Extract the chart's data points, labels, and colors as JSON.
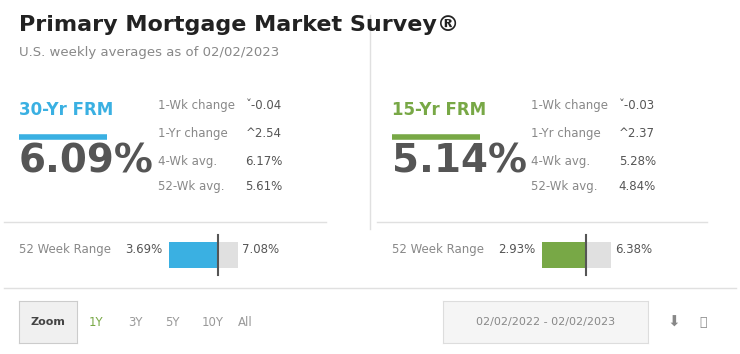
{
  "title": "Primary Mortgage Market Survey®",
  "subtitle": "U.S. weekly averages as of 02/02/2023",
  "background_color": "#ffffff",
  "left_panel": {
    "label": "30-Yr FRM",
    "label_color": "#3ab0e2",
    "line_color": "#3ab0e2",
    "rate": "6.09%",
    "rate_color": "#555555",
    "wk1_change_label": "1-Wk change",
    "wk1_change_value": "ˇ-0.04",
    "yr1_change_label": "1-Yr change",
    "yr1_change_value": "^2.54",
    "wk4_avg_label": "4-Wk avg.",
    "wk4_avg_value": "6.17%",
    "wk52_avg_label": "52-Wk avg.",
    "wk52_avg_value": "5.61%",
    "range_label": "52 Week Range",
    "range_min": "3.69%",
    "range_max": "7.08%",
    "range_bar_color": "#3ab0e2",
    "range_min_val": 3.69,
    "range_max_val": 7.08,
    "current_val": 6.09
  },
  "right_panel": {
    "label": "15-Yr FRM",
    "label_color": "#78a846",
    "line_color": "#78a846",
    "rate": "5.14%",
    "rate_color": "#555555",
    "wk1_change_label": "1-Wk change",
    "wk1_change_value": "ˇ-0.03",
    "yr1_change_label": "1-Yr change",
    "yr1_change_value": "^2.37",
    "wk4_avg_label": "4-Wk avg.",
    "wk4_avg_value": "5.28%",
    "wk52_avg_label": "52-Wk avg.",
    "wk52_avg_value": "4.84%",
    "range_label": "52 Week Range",
    "range_min": "2.93%",
    "range_max": "6.38%",
    "range_bar_color": "#78a846",
    "range_min_val": 2.93,
    "range_max_val": 6.38,
    "current_val": 5.14
  },
  "footer_zoom_label": "Zoom",
  "footer_periods": [
    "1Y",
    "3Y",
    "5Y",
    "10Y",
    "All"
  ],
  "footer_active_period": "1Y",
  "footer_date_range": "02/02/2022 - 02/02/2023",
  "divider_color": "#e0e0e0",
  "label_text_color": "#888888",
  "stats_text_color": "#555555",
  "change_text_color": "#555555"
}
